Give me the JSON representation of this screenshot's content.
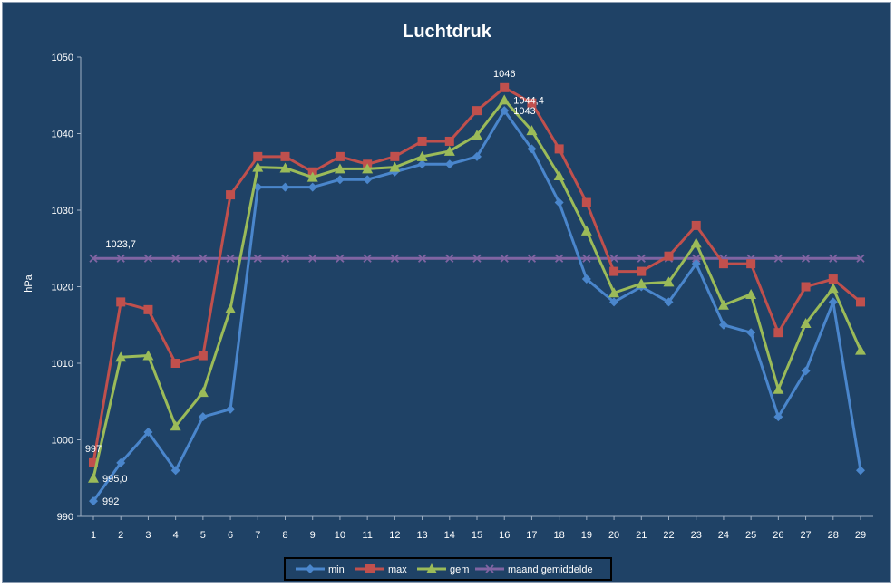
{
  "chart_data": {
    "type": "line",
    "title": "Luchtdruk",
    "xlabel": "",
    "ylabel": "hPa",
    "ylim": [
      990,
      1050
    ],
    "yticks": [
      990,
      1000,
      1010,
      1020,
      1030,
      1040,
      1050
    ],
    "x": [
      1,
      2,
      3,
      4,
      5,
      6,
      7,
      8,
      9,
      10,
      11,
      12,
      13,
      14,
      15,
      16,
      17,
      18,
      19,
      20,
      21,
      22,
      23,
      24,
      25,
      26,
      27,
      28,
      29
    ],
    "grid": false,
    "legend": "bottom",
    "series": [
      {
        "name": "min",
        "color": "#4a86cc",
        "marker": "diamond",
        "values": [
          992,
          997,
          1001,
          996,
          1003,
          1004,
          1033,
          1033,
          1033,
          1034,
          1034,
          1035,
          1036,
          1036,
          1037,
          1043,
          1038,
          1031,
          1021,
          1018,
          1020,
          1018,
          1023,
          1015,
          1014,
          1003,
          1009,
          1018,
          996
        ]
      },
      {
        "name": "max",
        "color": "#c0504d",
        "marker": "square",
        "values": [
          997,
          1018,
          1017,
          1010,
          1011,
          1032,
          1037,
          1037,
          1035,
          1037,
          1036,
          1037,
          1039,
          1039,
          1043,
          1046,
          1044,
          1038,
          1031,
          1022,
          1022,
          1024,
          1028,
          1023,
          1023,
          1014,
          1020,
          1021,
          1018
        ]
      },
      {
        "name": "gem",
        "color": "#9bbb59",
        "marker": "triangle",
        "values": [
          995.0,
          1010.8,
          1011.0,
          1001.8,
          1006.2,
          1017.1,
          1035.6,
          1035.5,
          1034.3,
          1035.4,
          1035.4,
          1035.6,
          1037.0,
          1037.7,
          1039.8,
          1044.4,
          1040.4,
          1034.5,
          1027.3,
          1019.2,
          1020.4,
          1020.6,
          1025.7,
          1017.6,
          1019.0,
          1006.6,
          1015.2,
          1019.8,
          1011.7
        ]
      },
      {
        "name": "maand gemiddelde",
        "color": "#8064a2",
        "marker": "x",
        "values": [
          1023.7,
          1023.7,
          1023.7,
          1023.7,
          1023.7,
          1023.7,
          1023.7,
          1023.7,
          1023.7,
          1023.7,
          1023.7,
          1023.7,
          1023.7,
          1023.7,
          1023.7,
          1023.7,
          1023.7,
          1023.7,
          1023.7,
          1023.7,
          1023.7,
          1023.7,
          1023.7,
          1023.7,
          1023.7,
          1023.7,
          1023.7,
          1023.7,
          1023.7
        ]
      }
    ],
    "data_labels": [
      {
        "text": "997",
        "series": 1,
        "index": 0,
        "pos": "above"
      },
      {
        "text": "995,0",
        "series": 2,
        "index": 0,
        "pos": "right"
      },
      {
        "text": "992",
        "series": 0,
        "index": 0,
        "pos": "right"
      },
      {
        "text": "1023,7",
        "series": 3,
        "index": 1,
        "pos": "above"
      },
      {
        "text": "1046",
        "series": 1,
        "index": 15,
        "pos": "above"
      },
      {
        "text": "1044,4",
        "series": 2,
        "index": 15,
        "pos": "right"
      },
      {
        "text": "1043",
        "series": 0,
        "index": 15,
        "pos": "right"
      }
    ]
  }
}
